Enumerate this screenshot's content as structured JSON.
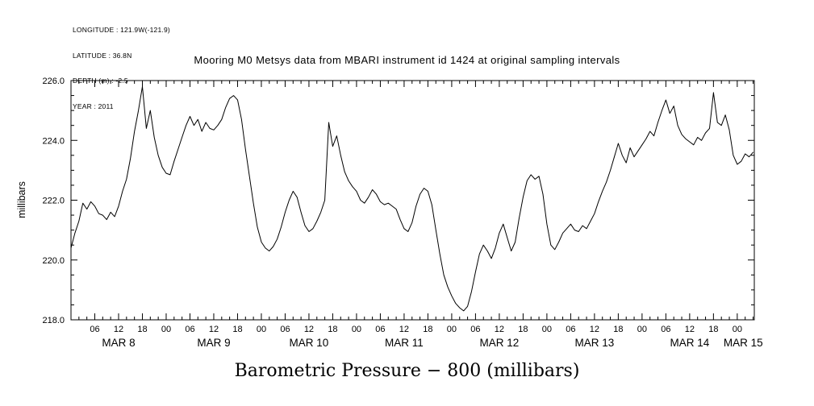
{
  "meta": {
    "lines": [
      "LONGITUDE : 121.9W(-121.9)",
      "LATITUDE : 36.8N",
      "DEPTH (m) : -2.5",
      "YEAR : 2011"
    ]
  },
  "chart_data": {
    "type": "line",
    "title": "Mooring M0 Metsys data from MBARI instrument id 1424 at original sampling intervals",
    "ylabel": "millibars",
    "xlabel": "Barometric Pressure − 800 (millibars)",
    "line_color": "#000000",
    "grid": false,
    "ylim": [
      218.0,
      226.0
    ],
    "yticks": [
      218.0,
      220.0,
      222.0,
      224.0,
      226.0
    ],
    "ytick_labels": [
      "218.0",
      "220.0",
      "222.0",
      "224.0",
      "226.0"
    ],
    "y_minor_step": 0.5,
    "xlim_hours": [
      0,
      172.3
    ],
    "x_epoch": "2011-03-08 00:00",
    "hour_tick_major_step": 6,
    "hour_tick_minor_step": 2,
    "hour_label_cycle": [
      "06",
      "12",
      "18",
      "00"
    ],
    "day_labels": [
      {
        "label": "MAR 8",
        "hour": 12
      },
      {
        "label": "MAR 9",
        "hour": 36
      },
      {
        "label": "MAR 10",
        "hour": 60
      },
      {
        "label": "MAR 11",
        "hour": 84
      },
      {
        "label": "MAR 12",
        "hour": 108
      },
      {
        "label": "MAR 13",
        "hour": 132
      },
      {
        "label": "MAR 14",
        "hour": 156
      },
      {
        "label": "MAR 15",
        "hour": 169.5
      }
    ],
    "series": [
      {
        "name": "barometric_pressure_minus_800_mb",
        "x_start_hour": 0,
        "x_step_hours": 1,
        "values": [
          220.4,
          220.9,
          221.3,
          221.9,
          221.7,
          221.95,
          221.8,
          221.55,
          221.5,
          221.35,
          221.6,
          221.45,
          221.8,
          222.3,
          222.7,
          223.4,
          224.3,
          225.0,
          225.8,
          224.4,
          225.0,
          224.1,
          223.5,
          223.1,
          222.9,
          222.85,
          223.3,
          223.7,
          224.1,
          224.5,
          224.8,
          224.5,
          224.7,
          224.3,
          224.6,
          224.4,
          224.35,
          224.5,
          224.7,
          225.1,
          225.4,
          225.5,
          225.35,
          224.7,
          223.7,
          222.8,
          221.9,
          221.1,
          220.6,
          220.4,
          220.3,
          220.45,
          220.7,
          221.1,
          221.6,
          222.0,
          222.3,
          222.1,
          221.6,
          221.15,
          220.95,
          221.05,
          221.3,
          221.6,
          222.0,
          224.6,
          223.8,
          224.15,
          223.5,
          222.95,
          222.65,
          222.45,
          222.3,
          222.0,
          221.9,
          222.1,
          222.35,
          222.2,
          221.95,
          221.85,
          221.9,
          221.8,
          221.7,
          221.35,
          221.05,
          220.95,
          221.25,
          221.8,
          222.2,
          222.4,
          222.3,
          221.85,
          221.0,
          220.2,
          219.5,
          219.1,
          218.8,
          218.55,
          218.4,
          218.3,
          218.45,
          218.95,
          219.6,
          220.2,
          220.5,
          220.3,
          220.05,
          220.4,
          220.9,
          221.2,
          220.75,
          220.3,
          220.6,
          221.4,
          222.1,
          222.65,
          222.85,
          222.7,
          222.8,
          222.2,
          221.2,
          220.5,
          220.35,
          220.6,
          220.9,
          221.05,
          221.2,
          221.0,
          220.95,
          221.15,
          221.05,
          221.3,
          221.55,
          221.95,
          222.3,
          222.6,
          223.0,
          223.45,
          223.9,
          223.5,
          223.25,
          223.75,
          223.45,
          223.65,
          223.85,
          224.05,
          224.3,
          224.15,
          224.6,
          225.0,
          225.35,
          224.9,
          225.15,
          224.5,
          224.2,
          224.05,
          223.95,
          223.85,
          224.1,
          224.0,
          224.25,
          224.4,
          225.6,
          224.6,
          224.5,
          224.85,
          224.35,
          223.5,
          223.2,
          223.3,
          223.55,
          223.45,
          223.6
        ]
      }
    ]
  }
}
